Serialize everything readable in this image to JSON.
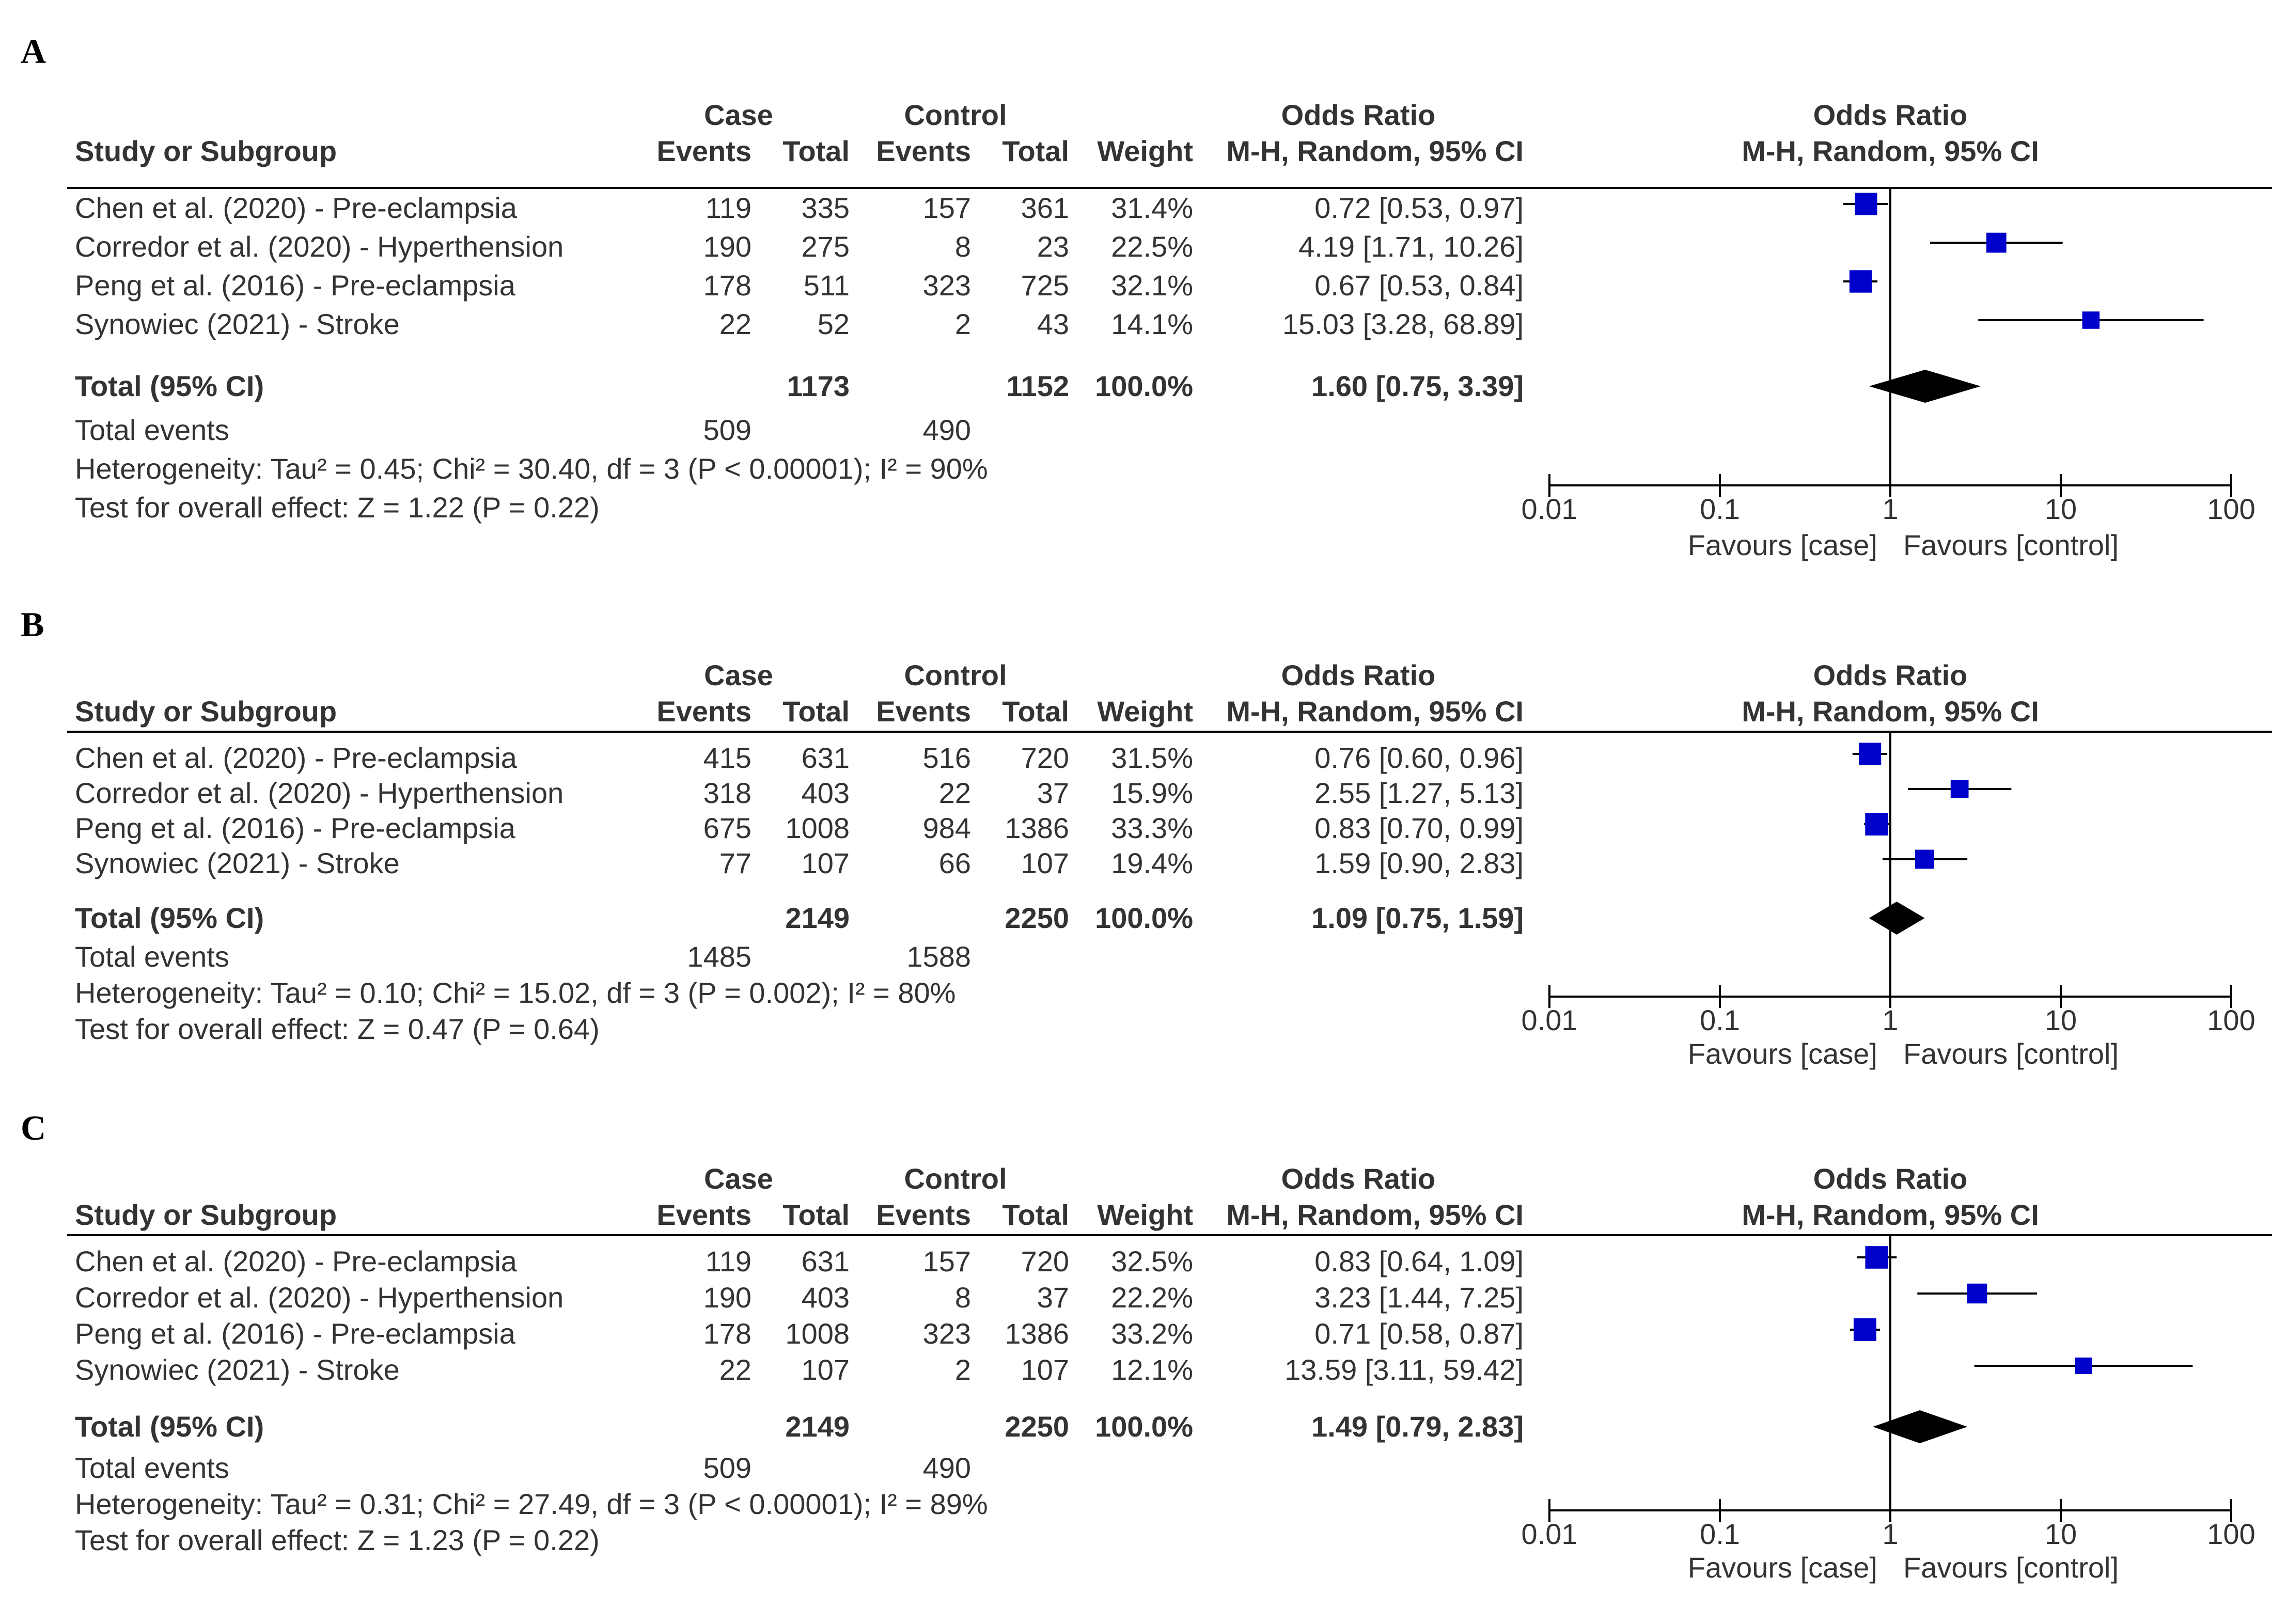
{
  "headers": {
    "case": "Case",
    "control": "Control",
    "odds_ratio": "Odds Ratio",
    "study": "Study or Subgroup",
    "events": "Events",
    "total": "Total",
    "weight": "Weight",
    "method": "M-H, Random, 95% CI",
    "plot_title": "Odds Ratio",
    "plot_method": "M-H, Random, 95% CI"
  },
  "axis": {
    "ticks": [
      {
        "value": 0.01,
        "label": "0.01"
      },
      {
        "value": 0.1,
        "label": "0.1"
      },
      {
        "value": 1,
        "label": "1"
      },
      {
        "value": 10,
        "label": "10"
      },
      {
        "value": 100,
        "label": "100"
      }
    ],
    "favours_left": "Favours [case]",
    "favours_right": "Favours [control]"
  },
  "colors": {
    "study_marker": "#0000cc",
    "diamond": "#000000",
    "text": "#333333"
  },
  "chart_data": [
    {
      "type": "forest",
      "label": "A",
      "studies": [
        {
          "name": "Chen et al. (2020) - Pre-eclampsia",
          "case_events": "119",
          "case_total": "335",
          "control_events": "157",
          "control_total": "361",
          "weight": "31.4%",
          "or_text": "0.72 [0.53, 0.97]",
          "or": 0.72,
          "lo": 0.53,
          "hi": 0.97,
          "w": 31.4
        },
        {
          "name": "Corredor et al. (2020) - Hyperthension",
          "case_events": "190",
          "case_total": "275",
          "control_events": "8",
          "control_total": "23",
          "weight": "22.5%",
          "or_text": "4.19 [1.71, 10.26]",
          "or": 4.19,
          "lo": 1.71,
          "hi": 10.26,
          "w": 22.5
        },
        {
          "name": "Peng et al. (2016) - Pre-eclampsia",
          "case_events": "178",
          "case_total": "511",
          "control_events": "323",
          "control_total": "725",
          "weight": "32.1%",
          "or_text": "0.67 [0.53, 0.84]",
          "or": 0.67,
          "lo": 0.53,
          "hi": 0.84,
          "w": 32.1
        },
        {
          "name": "Synowiec (2021) - Stroke",
          "case_events": "22",
          "case_total": "52",
          "control_events": "2",
          "control_total": "43",
          "weight": "14.1%",
          "or_text": "15.03 [3.28, 68.89]",
          "or": 15.03,
          "lo": 3.28,
          "hi": 68.89,
          "w": 14.1
        }
      ],
      "total": {
        "label": "Total (95% CI)",
        "case_total": "1173",
        "control_total": "1152",
        "weight": "100.0%",
        "or_text": "1.60 [0.75, 3.39]",
        "or": 1.6,
        "lo": 0.75,
        "hi": 3.39
      },
      "total_events": {
        "label": "Total events",
        "case": "509",
        "control": "490"
      },
      "heterogeneity": "Heterogeneity: Tau² = 0.45; Chi² = 30.40, df = 3 (P < 0.00001); I² = 90%",
      "overall_effect": "Test for overall effect: Z = 1.22 (P = 0.22)"
    },
    {
      "type": "forest",
      "label": "B",
      "studies": [
        {
          "name": "Chen et al. (2020) - Pre-eclampsia",
          "case_events": "415",
          "case_total": "631",
          "control_events": "516",
          "control_total": "720",
          "weight": "31.5%",
          "or_text": "0.76 [0.60, 0.96]",
          "or": 0.76,
          "lo": 0.6,
          "hi": 0.96,
          "w": 31.5
        },
        {
          "name": "Corredor et al. (2020) - Hyperthension",
          "case_events": "318",
          "case_total": "403",
          "control_events": "22",
          "control_total": "37",
          "weight": "15.9%",
          "or_text": "2.55 [1.27, 5.13]",
          "or": 2.55,
          "lo": 1.27,
          "hi": 5.13,
          "w": 15.9
        },
        {
          "name": "Peng et al. (2016) - Pre-eclampsia",
          "case_events": "675",
          "case_total": "1008",
          "control_events": "984",
          "control_total": "1386",
          "weight": "33.3%",
          "or_text": "0.83 [0.70, 0.99]",
          "or": 0.83,
          "lo": 0.7,
          "hi": 0.99,
          "w": 33.3
        },
        {
          "name": "Synowiec (2021) - Stroke",
          "case_events": "77",
          "case_total": "107",
          "control_events": "66",
          "control_total": "107",
          "weight": "19.4%",
          "or_text": "1.59 [0.90, 2.83]",
          "or": 1.59,
          "lo": 0.9,
          "hi": 2.83,
          "w": 19.4
        }
      ],
      "total": {
        "label": "Total (95% CI)",
        "case_total": "2149",
        "control_total": "2250",
        "weight": "100.0%",
        "or_text": "1.09 [0.75, 1.59]",
        "or": 1.09,
        "lo": 0.75,
        "hi": 1.59
      },
      "total_events": {
        "label": "Total events",
        "case": "1485",
        "control": "1588"
      },
      "heterogeneity": "Heterogeneity: Tau² = 0.10; Chi² = 15.02, df = 3 (P = 0.002); I² = 80%",
      "overall_effect": "Test for overall effect: Z = 0.47 (P = 0.64)"
    },
    {
      "type": "forest",
      "label": "C",
      "studies": [
        {
          "name": "Chen et al. (2020) - Pre-eclampsia",
          "case_events": "119",
          "case_total": "631",
          "control_events": "157",
          "control_total": "720",
          "weight": "32.5%",
          "or_text": "0.83 [0.64, 1.09]",
          "or": 0.83,
          "lo": 0.64,
          "hi": 1.09,
          "w": 32.5
        },
        {
          "name": "Corredor et al. (2020) - Hyperthension",
          "case_events": "190",
          "case_total": "403",
          "control_events": "8",
          "control_total": "37",
          "weight": "22.2%",
          "or_text": "3.23 [1.44, 7.25]",
          "or": 3.23,
          "lo": 1.44,
          "hi": 7.25,
          "w": 22.2
        },
        {
          "name": "Peng et al. (2016) - Pre-eclampsia",
          "case_events": "178",
          "case_total": "1008",
          "control_events": "323",
          "control_total": "1386",
          "weight": "33.2%",
          "or_text": "0.71 [0.58, 0.87]",
          "or": 0.71,
          "lo": 0.58,
          "hi": 0.87,
          "w": 33.2
        },
        {
          "name": "Synowiec (2021) - Stroke",
          "case_events": "22",
          "case_total": "107",
          "control_events": "2",
          "control_total": "107",
          "weight": "12.1%",
          "or_text": "13.59 [3.11, 59.42]",
          "or": 13.59,
          "lo": 3.11,
          "hi": 59.42,
          "w": 12.1
        }
      ],
      "total": {
        "label": "Total (95% CI)",
        "case_total": "2149",
        "control_total": "2250",
        "weight": "100.0%",
        "or_text": "1.49 [0.79, 2.83]",
        "or": 1.49,
        "lo": 0.79,
        "hi": 2.83
      },
      "total_events": {
        "label": "Total events",
        "case": "509",
        "control": "490"
      },
      "heterogeneity": "Heterogeneity: Tau² = 0.31; Chi² = 27.49, df = 3 (P < 0.00001); I² = 89%",
      "overall_effect": "Test for overall effect: Z = 1.23 (P = 0.22)"
    }
  ]
}
